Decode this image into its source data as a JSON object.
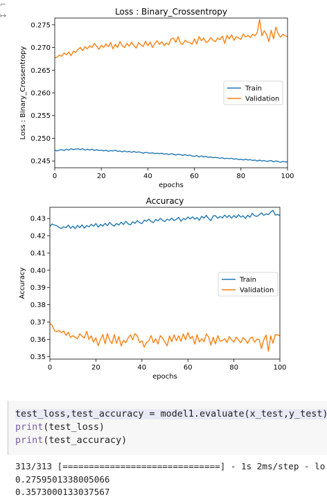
{
  "chart_data": [
    {
      "type": "line",
      "title": "Loss : Binary_Crossentropy",
      "xlabel": "epochs",
      "ylabel": "Loss : Binary_Crossentropy",
      "xlim": [
        0,
        100
      ],
      "ylim": [
        0.2435,
        0.2765
      ],
      "xticks": [
        0,
        20,
        40,
        60,
        80,
        100
      ],
      "yticks": [
        0.245,
        0.25,
        0.255,
        0.26,
        0.265,
        0.27,
        0.275
      ],
      "ytick_labels": [
        "0.245",
        "0.250",
        "0.255",
        "0.260",
        "0.265",
        "0.270",
        "0.275"
      ],
      "legend_position": "center-right",
      "series": [
        {
          "name": "Train",
          "color": "#1f77b4",
          "values": [
            0.2474,
            0.2472,
            0.2474,
            0.2475,
            0.2473,
            0.2476,
            0.2474,
            0.2477,
            0.2475,
            0.2476,
            0.2477,
            0.2475,
            0.2477,
            0.2474,
            0.2476,
            0.2474,
            0.2476,
            0.2473,
            0.2475,
            0.2473,
            0.2474,
            0.2472,
            0.2474,
            0.2471,
            0.2473,
            0.2472,
            0.2474,
            0.2471,
            0.2472,
            0.247,
            0.2472,
            0.247,
            0.2471,
            0.2469,
            0.2471,
            0.2469,
            0.247,
            0.2469,
            0.2467,
            0.2469,
            0.2468,
            0.2467,
            0.2468,
            0.2466,
            0.2467,
            0.2466,
            0.2467,
            0.2465,
            0.2466,
            0.2464,
            0.2466,
            0.2465,
            0.2463,
            0.2465,
            0.2464,
            0.2462,
            0.2464,
            0.2462,
            0.2463,
            0.2461,
            0.246,
            0.2462,
            0.2459,
            0.2461,
            0.2459,
            0.246,
            0.2458,
            0.2459,
            0.2457,
            0.2458,
            0.2457,
            0.2456,
            0.2457,
            0.2455,
            0.2456,
            0.2455,
            0.2456,
            0.2454,
            0.2455,
            0.2453,
            0.2454,
            0.2452,
            0.2454,
            0.2452,
            0.2453,
            0.2451,
            0.2452,
            0.245,
            0.2452,
            0.245,
            0.2451,
            0.2449,
            0.245,
            0.2451,
            0.2448,
            0.245,
            0.2449,
            0.2447,
            0.2449,
            0.2448,
            0.2448
          ]
        },
        {
          "name": "Validation",
          "color": "#ff7f0e",
          "values": [
            0.2677,
            0.2679,
            0.2683,
            0.2681,
            0.2688,
            0.2684,
            0.269,
            0.2682,
            0.2692,
            0.2689,
            0.2696,
            0.27,
            0.2693,
            0.2702,
            0.2697,
            0.2704,
            0.27,
            0.2709,
            0.2703,
            0.2696,
            0.2705,
            0.27,
            0.2708,
            0.2702,
            0.2711,
            0.2697,
            0.2707,
            0.27,
            0.2713,
            0.2704,
            0.27,
            0.2709,
            0.2703,
            0.2712,
            0.2704,
            0.2699,
            0.2711,
            0.2706,
            0.2702,
            0.2714,
            0.2704,
            0.2712,
            0.27,
            0.2709,
            0.2715,
            0.2707,
            0.2713,
            0.2704,
            0.271,
            0.2706,
            0.2719,
            0.2721,
            0.2711,
            0.2724,
            0.271,
            0.2707,
            0.2716,
            0.2712,
            0.2711,
            0.2707,
            0.2719,
            0.2708,
            0.2724,
            0.2715,
            0.2721,
            0.2711,
            0.2714,
            0.2722,
            0.2716,
            0.2713,
            0.2721,
            0.2717,
            0.2725,
            0.2709,
            0.2727,
            0.2719,
            0.2728,
            0.2716,
            0.2724,
            0.2721,
            0.2718,
            0.273,
            0.2723,
            0.2727,
            0.2722,
            0.2729,
            0.2726,
            0.2733,
            0.2762,
            0.2726,
            0.2737,
            0.2729,
            0.2713,
            0.2738,
            0.2719,
            0.2745,
            0.273,
            0.2723,
            0.2729,
            0.2726,
            0.2724
          ]
        }
      ]
    },
    {
      "type": "line",
      "title": "Accuracy",
      "xlabel": "epochs",
      "ylabel": "Accuracy",
      "xlim": [
        0,
        100
      ],
      "ylim": [
        0.3485,
        0.4365
      ],
      "xticks": [
        0,
        20,
        40,
        60,
        80,
        100
      ],
      "yticks": [
        0.35,
        0.36,
        0.37,
        0.38,
        0.39,
        0.4,
        0.41,
        0.42,
        0.43
      ],
      "ytick_labels": [
        "0.35",
        "0.36",
        "0.37",
        "0.38",
        "0.39",
        "0.40",
        "0.41",
        "0.42",
        "0.43"
      ],
      "legend_position": "center-right",
      "series": [
        {
          "name": "Train",
          "color": "#1f77b4",
          "values": [
            0.4255,
            0.4268,
            0.4262,
            0.4258,
            0.4248,
            0.4242,
            0.4252,
            0.4247,
            0.4262,
            0.4243,
            0.4256,
            0.4241,
            0.426,
            0.4247,
            0.4263,
            0.4244,
            0.4259,
            0.4252,
            0.4266,
            0.4255,
            0.4271,
            0.425,
            0.4266,
            0.4256,
            0.4272,
            0.4258,
            0.4277,
            0.4263,
            0.4256,
            0.4271,
            0.4262,
            0.4279,
            0.4265,
            0.4284,
            0.4269,
            0.4263,
            0.4281,
            0.4272,
            0.4288,
            0.4276,
            0.427,
            0.429,
            0.4284,
            0.4296,
            0.4283,
            0.4276,
            0.4295,
            0.4286,
            0.4301,
            0.4289,
            0.4282,
            0.4297,
            0.4289,
            0.4303,
            0.4288,
            0.4295,
            0.4307,
            0.4284,
            0.43,
            0.4294,
            0.4309,
            0.4297,
            0.431,
            0.4296,
            0.4306,
            0.429,
            0.4313,
            0.4302,
            0.4318,
            0.43,
            0.4288,
            0.4315,
            0.4316,
            0.4301,
            0.4312,
            0.4303,
            0.432,
            0.4306,
            0.4318,
            0.4302,
            0.4317,
            0.4305,
            0.4322,
            0.4308,
            0.4316,
            0.43,
            0.4319,
            0.4307,
            0.433,
            0.4316,
            0.4312,
            0.4321,
            0.4333,
            0.4318,
            0.4327,
            0.4322,
            0.4337,
            0.4348,
            0.432,
            0.4323,
            0.4318
          ]
        },
        {
          "name": "Validation",
          "color": "#ff7f0e",
          "values": [
            0.3692,
            0.3681,
            0.365,
            0.3643,
            0.3652,
            0.3638,
            0.3648,
            0.3622,
            0.3641,
            0.361,
            0.3621,
            0.3612,
            0.3603,
            0.3632,
            0.3617,
            0.3608,
            0.3646,
            0.3599,
            0.362,
            0.3583,
            0.3609,
            0.3563,
            0.3598,
            0.3627,
            0.3574,
            0.3633,
            0.3594,
            0.3575,
            0.3627,
            0.3576,
            0.3616,
            0.3561,
            0.3594,
            0.358,
            0.3607,
            0.3625,
            0.3597,
            0.3633,
            0.362,
            0.358,
            0.3592,
            0.3554,
            0.358,
            0.359,
            0.3622,
            0.358,
            0.3603,
            0.3572,
            0.3621,
            0.3607,
            0.3584,
            0.3562,
            0.362,
            0.3586,
            0.3625,
            0.3592,
            0.362,
            0.3588,
            0.3631,
            0.3597,
            0.3639,
            0.3603,
            0.3618,
            0.3572,
            0.3627,
            0.3584,
            0.3603,
            0.3585,
            0.3631,
            0.3614,
            0.3566,
            0.3612,
            0.3573,
            0.3621,
            0.3589,
            0.3592,
            0.3603,
            0.3581,
            0.3616,
            0.3596,
            0.3584,
            0.3612,
            0.3596,
            0.358,
            0.3609,
            0.3597,
            0.3576,
            0.3605,
            0.3613,
            0.3582,
            0.3601,
            0.3598,
            0.3546,
            0.3597,
            0.3625,
            0.3531,
            0.362,
            0.3577,
            0.3627,
            0.3625,
            0.3622
          ]
        }
      ]
    }
  ],
  "gutter": {
    "icon": "arrow-icon",
    "glyph": "↦"
  },
  "code_cell": {
    "lines": [
      {
        "plain": "test_loss,test_accuracy = model1.evaluate(x_test,y_test)"
      },
      {
        "kw": "print",
        "rest": "(test_loss)"
      },
      {
        "kw": "print",
        "rest": "(test_accuracy)"
      }
    ]
  },
  "output": {
    "lines": [
      "313/313 [==============================] - 1s 2ms/step - lo",
      "0.2759501338005066",
      "0.3573000133037567"
    ]
  }
}
